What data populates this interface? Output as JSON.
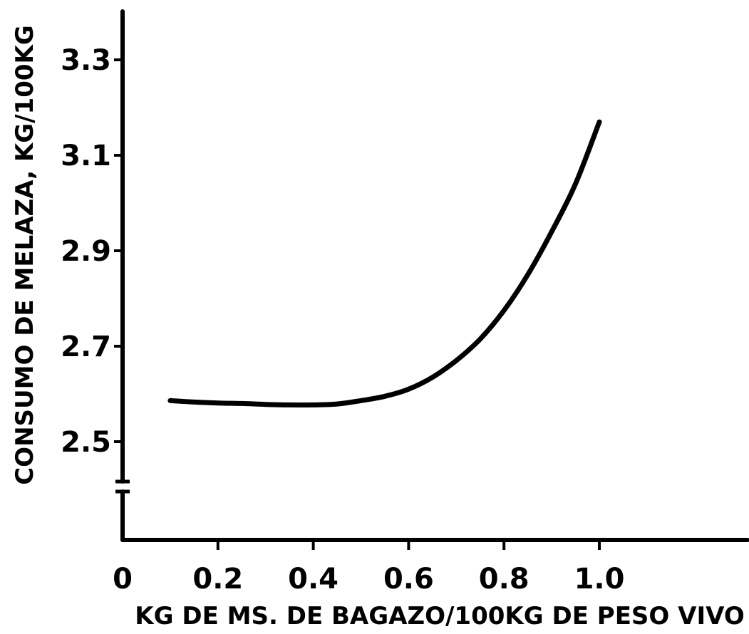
{
  "chart_data": {
    "type": "line",
    "title": "",
    "xlabel": "KG DE MS. DE BAGAZO/100KG DE PESO VIVO",
    "ylabel": "CONSUMO DE MELAZA, KG/100KG",
    "xlim": [
      0,
      1.2
    ],
    "ylim": [
      2.3,
      3.4
    ],
    "y_axis_break": true,
    "grid": false,
    "x_ticks": [
      {
        "value": 0,
        "label": "0"
      },
      {
        "value": 0.2,
        "label": "0.2"
      },
      {
        "value": 0.4,
        "label": "0.4"
      },
      {
        "value": 0.6,
        "label": "0.6"
      },
      {
        "value": 0.8,
        "label": "0.8"
      },
      {
        "value": 1.0,
        "label": "1.0"
      }
    ],
    "y_ticks": [
      {
        "value": 2.5,
        "label": "2.5"
      },
      {
        "value": 2.7,
        "label": "2.7"
      },
      {
        "value": 2.9,
        "label": "2.9"
      },
      {
        "value": 3.1,
        "label": "3.1"
      },
      {
        "value": 3.3,
        "label": "3.3"
      }
    ],
    "series": [
      {
        "color": "#000000",
        "x": [
          0.1,
          0.15,
          0.2,
          0.25,
          0.3,
          0.35,
          0.4,
          0.45,
          0.5,
          0.55,
          0.6,
          0.65,
          0.7,
          0.75,
          0.8,
          0.85,
          0.9,
          0.95,
          1.0
        ],
        "y": [
          2.586,
          2.583,
          2.581,
          2.58,
          2.578,
          2.577,
          2.577,
          2.579,
          2.586,
          2.595,
          2.61,
          2.635,
          2.67,
          2.715,
          2.775,
          2.85,
          2.94,
          3.04,
          3.17
        ]
      }
    ]
  }
}
